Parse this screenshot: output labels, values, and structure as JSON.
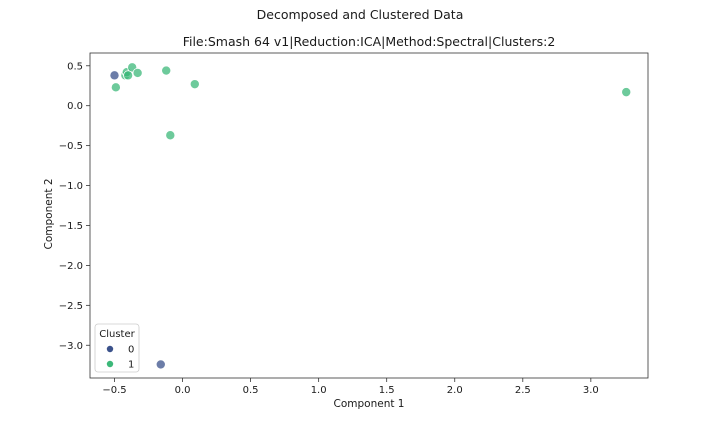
{
  "figure": {
    "suptitle": "Decomposed and Clustered Data"
  },
  "chart_data": {
    "type": "scatter",
    "title": "File:Smash 64 v1|Reduction:ICA|Method:Spectral|Clusters:2",
    "xlabel": "Component 1",
    "ylabel": "Component 2",
    "xlim": [
      -0.68,
      3.42
    ],
    "ylim": [
      -3.41,
      0.66
    ],
    "xticks": [
      -0.5,
      0.0,
      0.5,
      1.0,
      1.5,
      2.0,
      2.5,
      3.0
    ],
    "yticks": [
      0.5,
      0.0,
      -0.5,
      -1.0,
      -1.5,
      -2.0,
      -2.5,
      -3.0
    ],
    "grid": false,
    "legend": {
      "title": "Cluster",
      "placement": "lower-left",
      "entries": [
        "0",
        "1"
      ]
    },
    "series": [
      {
        "name": "0",
        "color": "#3b528b",
        "points": [
          {
            "x": -0.5,
            "y": 0.38
          },
          {
            "x": -0.16,
            "y": -3.24
          }
        ]
      },
      {
        "name": "1",
        "color": "#3cb879",
        "points": [
          {
            "x": -0.49,
            "y": 0.23
          },
          {
            "x": -0.42,
            "y": 0.38
          },
          {
            "x": -0.41,
            "y": 0.42
          },
          {
            "x": -0.4,
            "y": 0.38
          },
          {
            "x": -0.37,
            "y": 0.48
          },
          {
            "x": -0.33,
            "y": 0.41
          },
          {
            "x": -0.12,
            "y": 0.44
          },
          {
            "x": -0.09,
            "y": -0.37
          },
          {
            "x": 0.09,
            "y": 0.27
          },
          {
            "x": 3.26,
            "y": 0.17
          }
        ]
      }
    ]
  }
}
